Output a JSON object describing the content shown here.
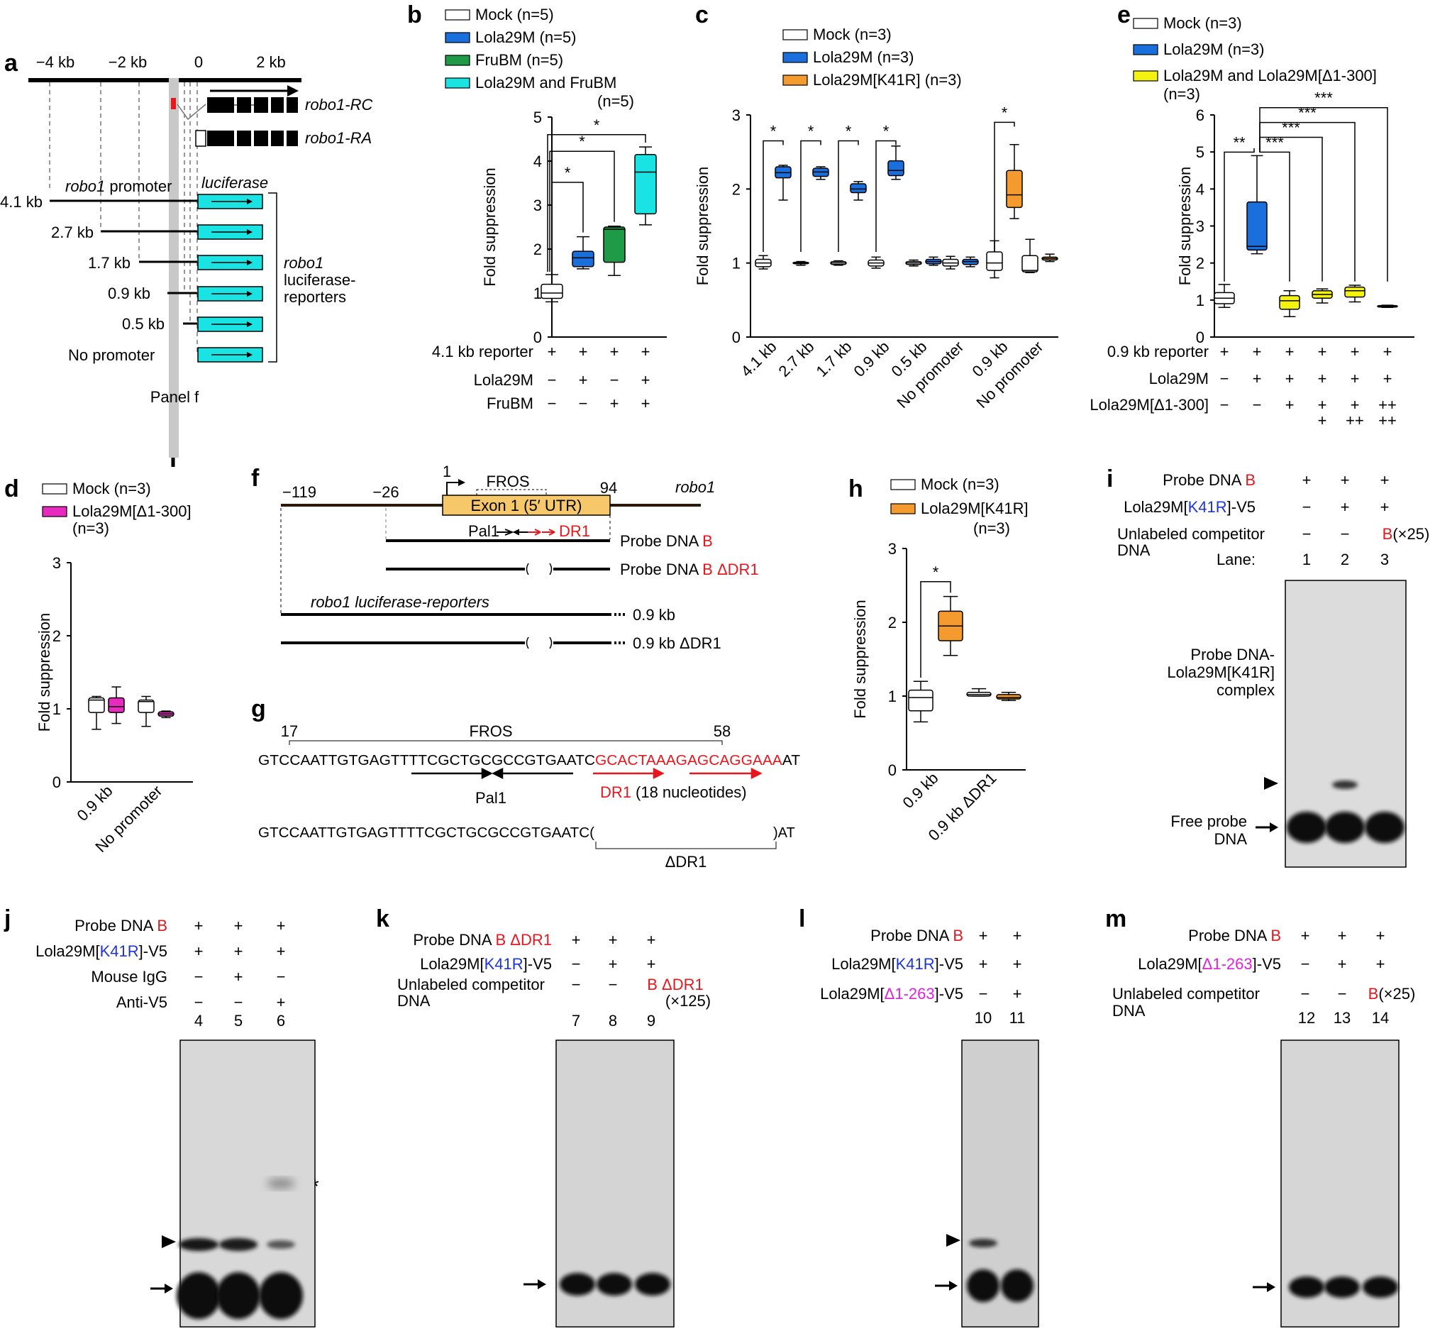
{
  "colors": {
    "mock": "#ffffff",
    "lola29m": "#1a6fdc",
    "frubm": "#1f9a46",
    "both": "#19e3e3",
    "k41r": "#f59a2e",
    "del300_yellow": "#f5f20f",
    "del300_magenta": "#e82bbf",
    "red": "#e8171d",
    "blue": "#1d35d8",
    "magenta": "#dd22dd",
    "exon": "#f7c86a",
    "luc": "#19e3e3",
    "gray": "#c8c8c8"
  },
  "panels": {
    "a": {
      "label": "a",
      "ticks": [
        "−4 kb",
        "−2 kb",
        "0",
        "2 kb"
      ],
      "rc": "robo1-RC",
      "ra": "robo1-RA",
      "promoter_label": "robo1 promoter",
      "luciferase": "luciferase",
      "lines": [
        "4.1 kb",
        "2.7 kb",
        "1.7 kb",
        "0.9 kb",
        "0.5 kb",
        "No promoter"
      ],
      "bracket_l1": "robo1",
      "bracket_l2": "luciferase-",
      "bracket_l3": "reporters",
      "panel_f": "Panel f"
    },
    "b": {
      "label": "b",
      "row_labels": [
        "4.1 kb reporter",
        "Lola29M",
        "FruBM"
      ],
      "rows": [
        [
          "+",
          "+",
          "+",
          "+"
        ],
        [
          "−",
          "+",
          "−",
          "+"
        ],
        [
          "−",
          "−",
          "+",
          "+"
        ]
      ]
    },
    "c": {
      "label": "c"
    },
    "d": {
      "label": "d"
    },
    "e": {
      "label": "e",
      "row_labels": [
        "0.9 kb reporter",
        "Lola29M",
        "Lola29M[Δ1-300]"
      ],
      "rows": [
        [
          "+",
          "+",
          "+",
          "+",
          "+",
          "+"
        ],
        [
          "−",
          "+",
          "+",
          "+",
          "+",
          "+"
        ],
        [
          "−",
          "−",
          "+",
          "+",
          "+",
          "++"
        ]
      ],
      "row3b": [
        "",
        "",
        "",
        "+",
        "++",
        "++"
      ]
    },
    "f": {
      "label": "f",
      "n1": "−119",
      "n2": "−26",
      "n3": "1",
      "n4": "94",
      "exon": "Exon 1 (5′ UTR)",
      "fros": "FROS",
      "gene": "robo1",
      "pal1": "Pal1",
      "dr1": "DR1",
      "probeB_pre": "Probe DNA ",
      "probeB_b": "B",
      "probeBd_pre": "Probe DNA ",
      "probeBd_b": "B ΔDR1",
      "reporter": "robo1 luciferase-reporters",
      "r1": "0.9 kb",
      "r2": "0.9 kb ΔDR1"
    },
    "g": {
      "label": "g",
      "n17": "17",
      "n58": "58",
      "fros": "FROS",
      "seq1_black": "GTCCAATTGTGAGTTTTCGCTGCGCCGTGAATC",
      "seq1_red": "GCACTAAAGAGCAGGAAA",
      "seq1_end": "AT",
      "pal1": "Pal1",
      "dr1": "DR1",
      "dr1_note": "(18 nucleotides)",
      "seq2_black": "GTCCAATTGTGAGTTTTCGCTGCGCCGTGAATC(",
      "seq2_end": ")AT",
      "ddr1": "ΔDR1"
    },
    "h": {
      "label": "h"
    },
    "i": {
      "label": "i",
      "probe": "Probe DNA ",
      "probe_b": "B",
      "lola_pre": "Lola29M[",
      "lola_k": "K41R",
      "lola_post": "]-V5",
      "comp1": "Unlabeled competitor",
      "comp2": "DNA",
      "lane": "Lane:",
      "lanes": [
        "1",
        "2",
        "3"
      ],
      "r1": [
        "+",
        "+",
        "+"
      ],
      "r2": [
        "−",
        "+",
        "+"
      ],
      "r3": [
        "−",
        "−",
        "B(×25)"
      ],
      "complex1": "Probe DNA-",
      "complex2": "Lola29M[K41R]",
      "complex3": "complex",
      "free1": "Free probe",
      "free2": "DNA"
    },
    "j": {
      "label": "j",
      "probe": "Probe DNA ",
      "probe_b": "B",
      "lola_pre": "Lola29M[",
      "lola_k": "K41R",
      "lola_post": "]-V5",
      "igg": "Mouse IgG",
      "antiv5": "Anti-V5",
      "lanes": [
        "4",
        "5",
        "6"
      ],
      "r1": [
        "+",
        "+",
        "+"
      ],
      "r2": [
        "+",
        "+",
        "+"
      ],
      "r3": [
        "−",
        "+",
        "−"
      ],
      "r4": [
        "−",
        "−",
        "+"
      ],
      "star": "*"
    },
    "k": {
      "label": "k",
      "probe": "Probe DNA ",
      "probe_b": "B ΔDR1",
      "lola_pre": "Lola29M[",
      "lola_k": "K41R",
      "lola_post": "]-V5",
      "comp1": "Unlabeled competitor",
      "comp2": "DNA",
      "lanes": [
        "7",
        "8",
        "9"
      ],
      "r1": [
        "+",
        "+",
        "+"
      ],
      "r2": [
        "−",
        "+",
        "+"
      ],
      "r3": [
        "−",
        "−"
      ],
      "r3c": "B ΔDR1",
      "r3c2": "(×125)"
    },
    "l": {
      "label": "l",
      "probe": "Probe DNA ",
      "probe_b": "B",
      "lola_pre": "Lola29M[",
      "lola_k": "K41R",
      "lola_post": "]-V5",
      "lola2_pre": "Lola29M[",
      "lola2_k": "Δ1-263",
      "lola2_post": "]-V5",
      "lanes": [
        "10",
        "11"
      ],
      "r1": [
        "+",
        "+"
      ],
      "r2": [
        "+",
        "+"
      ],
      "r3": [
        "−",
        "+"
      ]
    },
    "m": {
      "label": "m",
      "probe": "Probe DNA ",
      "probe_b": "B",
      "lola_pre": "Lola29M[",
      "lola_k": "Δ1-263",
      "lola_post": "]-V5",
      "comp1": "Unlabeled competitor",
      "comp2": "DNA",
      "lanes": [
        "12",
        "13",
        "14"
      ],
      "r1": [
        "+",
        "+",
        "+"
      ],
      "r2": [
        "−",
        "+",
        "+"
      ],
      "r3": [
        "−",
        "−"
      ],
      "r3c": "B",
      "r3c2": "(×25)"
    }
  },
  "chart_data": [
    {
      "panel": "b",
      "type": "box",
      "ylabel": "Fold suppression",
      "ylim": [
        0,
        5
      ],
      "yticks": [
        0,
        1,
        2,
        3,
        4,
        5
      ],
      "legend": [
        {
          "name": "Mock (n=5)",
          "color": "#ffffff"
        },
        {
          "name": "Lola29M (n=5)",
          "color": "#1a6fdc"
        },
        {
          "name": "FruBM (n=5)",
          "color": "#1f9a46"
        },
        {
          "name": "Lola29M and FruBM",
          "note": "(n=5)",
          "color": "#19e3e3"
        }
      ],
      "boxes": [
        {
          "color": "#ffffff",
          "min": 0.8,
          "q1": 0.88,
          "med": 1.0,
          "q3": 1.2,
          "max": 1.42
        },
        {
          "color": "#1a6fdc",
          "min": 1.55,
          "q1": 1.6,
          "med": 1.8,
          "q3": 1.95,
          "max": 2.28
        },
        {
          "color": "#1f9a46",
          "min": 1.4,
          "q1": 1.7,
          "med": 2.45,
          "q3": 2.5,
          "max": 2.52
        },
        {
          "color": "#19e3e3",
          "min": 2.55,
          "q1": 2.8,
          "med": 3.75,
          "q3": 4.15,
          "max": 4.32
        }
      ],
      "significance": [
        {
          "from": 1,
          "to": 2,
          "level": 4.0,
          "label": "*"
        },
        {
          "from": 1,
          "to": 3,
          "level": 3.9,
          "label": "*"
        },
        {
          "from": 1,
          "to": 4,
          "level": 4.8,
          "label": "*"
        }
      ]
    },
    {
      "panel": "c",
      "type": "box",
      "ylabel": "Fold suppression",
      "ylim": [
        0,
        3
      ],
      "yticks": [
        0,
        1,
        2,
        3
      ],
      "legend": [
        {
          "name": "Mock (n=3)",
          "color": "#ffffff"
        },
        {
          "name": "Lola29M (n=3)",
          "color": "#1a6fdc"
        },
        {
          "name": "Lola29M[K41R] (n=3)",
          "color": "#f59a2e"
        }
      ],
      "categories": [
        "4.1 kb",
        "2.7 kb",
        "1.7 kb",
        "0.9 kb",
        "0.5 kb",
        "No promoter",
        "0.9 kb",
        "No promoter"
      ],
      "boxes": [
        {
          "group": 0,
          "color": "#ffffff",
          "min": 0.92,
          "q1": 0.95,
          "med": 1.0,
          "q3": 1.05,
          "max": 1.1
        },
        {
          "group": 0,
          "color": "#1a6fdc",
          "min": 1.85,
          "q1": 2.15,
          "med": 2.22,
          "q3": 2.3,
          "max": 2.32
        },
        {
          "group": 1,
          "color": "#ffffff",
          "min": 0.97,
          "q1": 0.99,
          "med": 1.0,
          "q3": 1.01,
          "max": 1.02
        },
        {
          "group": 1,
          "color": "#1a6fdc",
          "min": 2.13,
          "q1": 2.17,
          "med": 2.23,
          "q3": 2.28,
          "max": 2.3
        },
        {
          "group": 2,
          "color": "#ffffff",
          "min": 0.97,
          "q1": 0.98,
          "med": 1.0,
          "q3": 1.02,
          "max": 1.03
        },
        {
          "group": 2,
          "color": "#1a6fdc",
          "min": 1.85,
          "q1": 1.95,
          "med": 2.0,
          "q3": 2.07,
          "max": 2.1
        },
        {
          "group": 3,
          "color": "#ffffff",
          "min": 0.93,
          "q1": 0.96,
          "med": 1.0,
          "q3": 1.04,
          "max": 1.08
        },
        {
          "group": 3,
          "color": "#1a6fdc",
          "min": 2.13,
          "q1": 2.18,
          "med": 2.25,
          "q3": 2.38,
          "max": 2.58
        },
        {
          "group": 4,
          "color": "#ffffff",
          "min": 0.96,
          "q1": 0.98,
          "med": 1.0,
          "q3": 1.02,
          "max": 1.04
        },
        {
          "group": 4,
          "color": "#1a6fdc",
          "min": 0.97,
          "q1": 0.99,
          "med": 1.02,
          "q3": 1.05,
          "max": 1.08
        },
        {
          "group": 5,
          "color": "#ffffff",
          "min": 0.92,
          "q1": 0.96,
          "med": 1.0,
          "q3": 1.05,
          "max": 1.09
        },
        {
          "group": 5,
          "color": "#1a6fdc",
          "min": 0.95,
          "q1": 0.98,
          "med": 1.02,
          "q3": 1.05,
          "max": 1.08
        },
        {
          "group": 6,
          "color": "#ffffff",
          "min": 0.8,
          "q1": 0.9,
          "med": 1.0,
          "q3": 1.15,
          "max": 1.3
        },
        {
          "group": 6,
          "color": "#f59a2e",
          "min": 1.6,
          "q1": 1.75,
          "med": 1.92,
          "q3": 2.25,
          "max": 2.6
        },
        {
          "group": 7,
          "color": "#ffffff",
          "min": 0.87,
          "q1": 0.88,
          "med": 0.9,
          "q3": 1.1,
          "max": 1.32
        },
        {
          "group": 7,
          "color": "#f59a2e",
          "min": 1.02,
          "q1": 1.04,
          "med": 1.06,
          "q3": 1.08,
          "max": 1.12
        }
      ],
      "significance": [
        {
          "group": 0,
          "label": "*"
        },
        {
          "group": 1,
          "label": "*"
        },
        {
          "group": 2,
          "label": "*"
        },
        {
          "group": 3,
          "label": "*"
        },
        {
          "group": 6,
          "label": "*"
        }
      ]
    },
    {
      "panel": "d",
      "type": "box",
      "ylabel": "Fold suppression",
      "ylim": [
        0,
        3
      ],
      "yticks": [
        0,
        1,
        2,
        3
      ],
      "legend": [
        {
          "name": "Mock (n=3)",
          "color": "#ffffff"
        },
        {
          "name": "Lola29M[Δ1-300]",
          "note": "(n=3)",
          "color": "#e82bbf"
        }
      ],
      "categories": [
        "0.9 kb",
        "No promoter"
      ],
      "boxes": [
        {
          "group": 0,
          "color": "#ffffff",
          "min": 0.72,
          "q1": 0.95,
          "med": 1.12,
          "q3": 1.15,
          "max": 1.17
        },
        {
          "group": 0,
          "color": "#e82bbf",
          "min": 0.8,
          "q1": 0.95,
          "med": 1.03,
          "q3": 1.15,
          "max": 1.3
        },
        {
          "group": 1,
          "color": "#ffffff",
          "min": 0.76,
          "q1": 0.95,
          "med": 1.1,
          "q3": 1.12,
          "max": 1.17
        },
        {
          "group": 1,
          "color": "#e82bbf",
          "min": 0.88,
          "q1": 0.9,
          "med": 0.93,
          "q3": 0.96,
          "max": 0.97
        }
      ]
    },
    {
      "panel": "e",
      "type": "box",
      "ylabel": "Fold suppression",
      "ylim": [
        0,
        6
      ],
      "yticks": [
        0,
        1,
        2,
        3,
        4,
        5,
        6
      ],
      "legend": [
        {
          "name": "Mock (n=3)",
          "color": "#ffffff"
        },
        {
          "name": "Lola29M (n=3)",
          "color": "#1a6fdc"
        },
        {
          "name": "Lola29M and Lola29M[Δ1-300]",
          "note": "(n=3)",
          "color": "#f5f20f"
        }
      ],
      "boxes": [
        {
          "color": "#ffffff",
          "min": 0.8,
          "q1": 0.9,
          "med": 1.05,
          "q3": 1.2,
          "max": 1.42
        },
        {
          "color": "#1a6fdc",
          "min": 2.25,
          "q1": 2.35,
          "med": 2.45,
          "q3": 3.65,
          "max": 4.9
        },
        {
          "color": "#f5f20f",
          "min": 0.55,
          "q1": 0.75,
          "med": 0.98,
          "q3": 1.12,
          "max": 1.25
        },
        {
          "color": "#f5f20f",
          "min": 0.92,
          "q1": 1.05,
          "med": 1.15,
          "q3": 1.25,
          "max": 1.3
        },
        {
          "color": "#f5f20f",
          "min": 0.95,
          "q1": 1.08,
          "med": 1.25,
          "q3": 1.35,
          "max": 1.4
        },
        {
          "color": "#f5f20f",
          "min": 0.8,
          "q1": 0.81,
          "med": 0.83,
          "q3": 0.85,
          "max": 0.86
        }
      ],
      "significance": [
        {
          "from": 1,
          "to": 2,
          "label": "**",
          "level": 5.15
        },
        {
          "from": 2,
          "to": 3,
          "label": "***",
          "level": 5.15
        },
        {
          "from": 2,
          "to": 4,
          "label": "***",
          "level": 5.55
        },
        {
          "from": 2,
          "to": 5,
          "label": "***",
          "level": 5.95
        },
        {
          "from": 2,
          "to": 6,
          "label": "***",
          "level": 6.35
        }
      ]
    },
    {
      "panel": "h",
      "type": "box",
      "ylabel": "Fold suppression",
      "ylim": [
        0,
        3
      ],
      "yticks": [
        0,
        1,
        2,
        3
      ],
      "legend": [
        {
          "name": "Mock (n=3)",
          "color": "#ffffff"
        },
        {
          "name": "Lola29M[K41R]",
          "note": "(n=3)",
          "color": "#f59a2e"
        }
      ],
      "categories": [
        "0.9 kb",
        "0.9 kb ΔDR1"
      ],
      "boxes": [
        {
          "group": 0,
          "color": "#ffffff",
          "min": 0.65,
          "q1": 0.8,
          "med": 0.98,
          "q3": 1.08,
          "max": 1.2
        },
        {
          "group": 0,
          "color": "#f59a2e",
          "min": 1.55,
          "q1": 1.75,
          "med": 1.95,
          "q3": 2.15,
          "max": 2.35
        },
        {
          "group": 1,
          "color": "#ffffff",
          "min": 1.0,
          "q1": 1.0,
          "med": 1.02,
          "q3": 1.05,
          "max": 1.1
        },
        {
          "group": 1,
          "color": "#f59a2e",
          "min": 0.94,
          "q1": 0.96,
          "med": 0.98,
          "q3": 1.02,
          "max": 1.05
        }
      ],
      "significance": [
        {
          "from": 0,
          "to": 1,
          "label": "*"
        }
      ]
    }
  ]
}
